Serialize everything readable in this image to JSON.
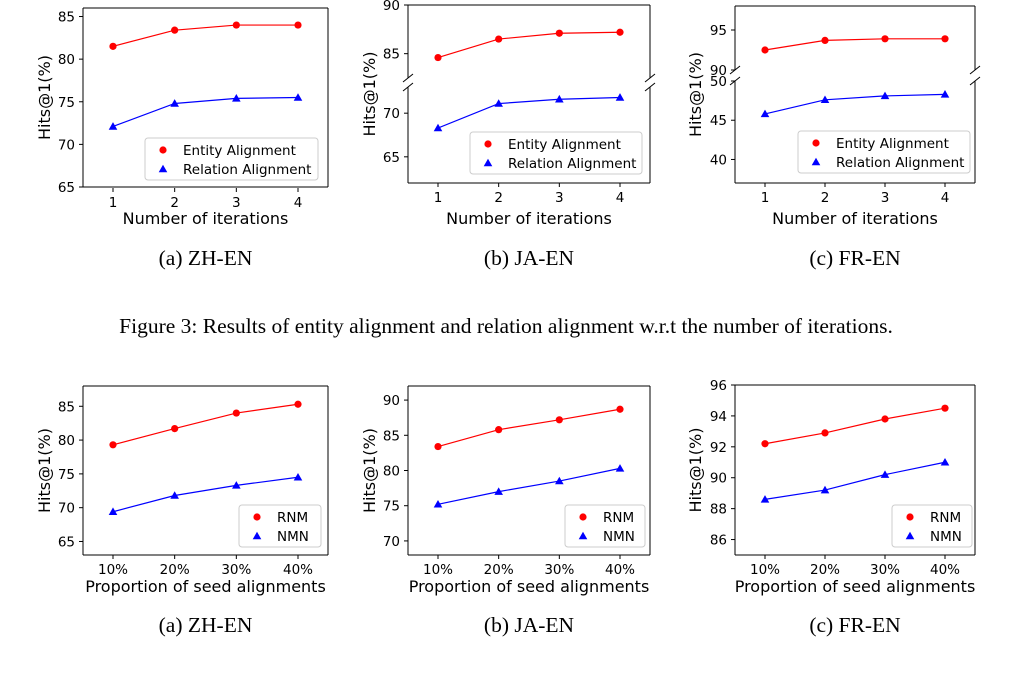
{
  "figure3_caption": "Figure 3: Results of entity alignment and relation alignment w.r.t the number of iterations.",
  "colors": {
    "series_a": "#ff0000",
    "series_b": "#0000ff",
    "axis": "#000000",
    "legend_border": "#cccccc"
  },
  "chart_data": [
    {
      "type": "line",
      "subcaption": "(a)  ZH-EN",
      "x": [
        "1",
        "2",
        "3",
        "4"
      ],
      "xlabel": "Number of iterations",
      "ylabel": "Hits@1(%)",
      "ylim": [
        65,
        86
      ],
      "yticks": [
        "65",
        "70",
        "75",
        "80",
        "85"
      ],
      "legend_position": "lower-right",
      "series": [
        {
          "name": "Entity Alignment",
          "marker": "circle",
          "values": [
            81.5,
            83.4,
            84.0,
            84.0
          ]
        },
        {
          "name": "Relation Alignment",
          "marker": "triangle",
          "values": [
            72.1,
            74.8,
            75.4,
            75.5
          ]
        }
      ]
    },
    {
      "type": "line",
      "subcaption": "(b)  JA-EN",
      "x": [
        "1",
        "2",
        "3",
        "4"
      ],
      "xlabel": "Number of iterations",
      "ylabel": "Hits@1(%)",
      "broken_axis": true,
      "upper_ylim": [
        82.5,
        90
      ],
      "upper_yticks": [
        "85",
        "90"
      ],
      "lower_ylim": [
        62,
        73
      ],
      "lower_yticks": [
        "65",
        "70"
      ],
      "legend_position": "lower-right",
      "series": [
        {
          "name": "Entity Alignment",
          "marker": "circle",
          "values": [
            84.6,
            86.5,
            87.1,
            87.2
          ]
        },
        {
          "name": "Relation Alignment",
          "marker": "triangle",
          "values": [
            68.3,
            71.1,
            71.6,
            71.8
          ]
        }
      ]
    },
    {
      "type": "line",
      "subcaption": "(c)  FR-EN",
      "x": [
        "1",
        "2",
        "3",
        "4"
      ],
      "xlabel": "Number of iterations",
      "ylabel": "Hits@1(%)",
      "broken_axis": true,
      "upper_ylim": [
        90,
        98
      ],
      "upper_yticks": [
        "90",
        "95"
      ],
      "lower_ylim": [
        37,
        50
      ],
      "lower_yticks": [
        "40",
        "45",
        "50"
      ],
      "legend_position": "lower-right",
      "series": [
        {
          "name": "Entity Alignment",
          "marker": "circle",
          "values": [
            92.5,
            93.7,
            93.9,
            93.9
          ]
        },
        {
          "name": "Relation Alignment",
          "marker": "triangle",
          "values": [
            45.8,
            47.6,
            48.1,
            48.3
          ]
        }
      ]
    },
    {
      "type": "line",
      "subcaption": "(a)  ZH-EN",
      "x": [
        "10%",
        "20%",
        "30%",
        "40%"
      ],
      "xlabel": "Proportion of seed alignments",
      "ylabel": "Hits@1(%)",
      "ylim": [
        63,
        88
      ],
      "yticks": [
        "65",
        "70",
        "75",
        "80",
        "85"
      ],
      "legend_position": "lower-right",
      "series": [
        {
          "name": "RNM",
          "marker": "circle",
          "values": [
            79.3,
            81.7,
            84.0,
            85.3
          ]
        },
        {
          "name": "NMN",
          "marker": "triangle",
          "values": [
            69.4,
            71.8,
            73.3,
            74.5
          ]
        }
      ]
    },
    {
      "type": "line",
      "subcaption": "(b)  JA-EN",
      "x": [
        "10%",
        "20%",
        "30%",
        "40%"
      ],
      "xlabel": "Proportion of seed alignments",
      "ylabel": "Hits@1(%)",
      "ylim": [
        68,
        92
      ],
      "yticks": [
        "70",
        "75",
        "80",
        "85",
        "90"
      ],
      "legend_position": "lower-right",
      "series": [
        {
          "name": "RNM",
          "marker": "circle",
          "values": [
            83.4,
            85.8,
            87.2,
            88.7
          ]
        },
        {
          "name": "NMN",
          "marker": "triangle",
          "values": [
            75.2,
            77.0,
            78.5,
            80.3
          ]
        }
      ]
    },
    {
      "type": "line",
      "subcaption": "(c)  FR-EN",
      "x": [
        "10%",
        "20%",
        "30%",
        "40%"
      ],
      "xlabel": "Proportion of seed alignments",
      "ylabel": "Hits@1(%)",
      "ylim": [
        85,
        96
      ],
      "yticks": [
        "86",
        "88",
        "90",
        "92",
        "94",
        "96"
      ],
      "legend_position": "lower-right",
      "series": [
        {
          "name": "RNM",
          "marker": "circle",
          "values": [
            92.2,
            92.9,
            93.8,
            94.5
          ]
        },
        {
          "name": "NMN",
          "marker": "triangle",
          "values": [
            88.6,
            89.2,
            90.2,
            91.0
          ]
        }
      ]
    }
  ]
}
